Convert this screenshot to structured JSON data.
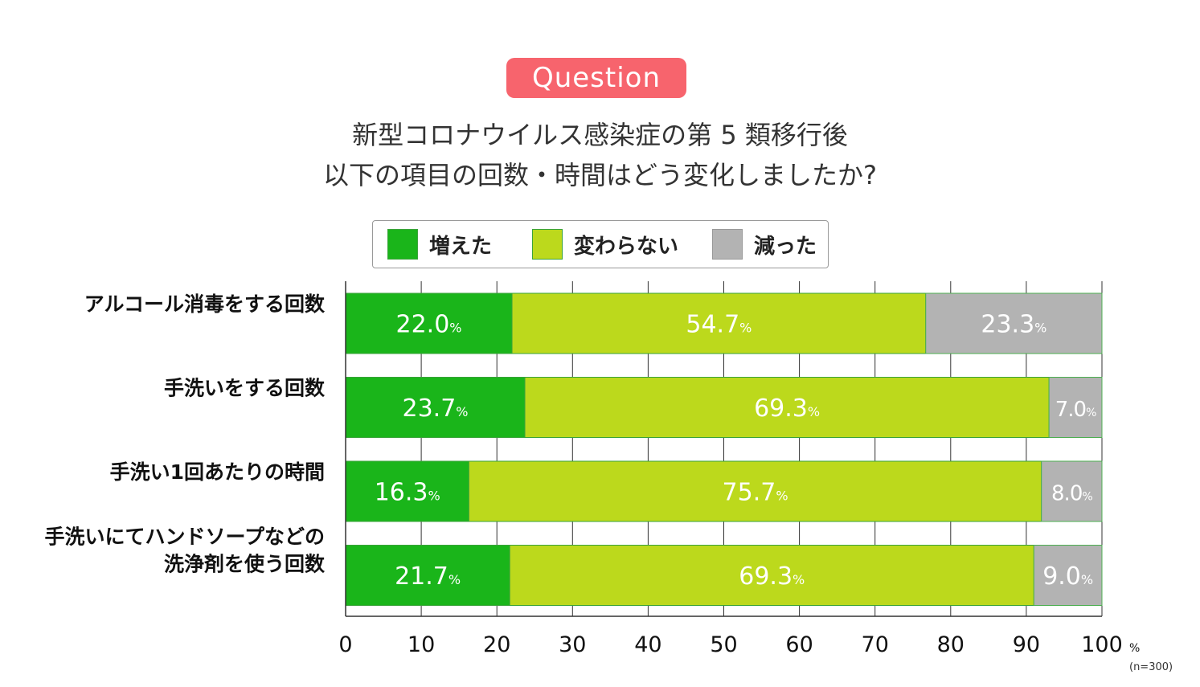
{
  "badge": "Question",
  "title_line1": "新型コロナウイルス感染症の第 5 類移行後",
  "title_line2": "以下の項目の回数・時間はどう変化しましたか?",
  "note": "(n=300)",
  "colors": {
    "increased": "#1ab51a",
    "unchanged": "#bcd91c",
    "decreased": "#b3b3b3"
  },
  "legend": [
    {
      "label": "増えた",
      "color": "#1ab51a"
    },
    {
      "label": "変わらない",
      "color": "#bcd91c"
    },
    {
      "label": "減った",
      "color": "#b3b3b3"
    }
  ],
  "chart_data": {
    "type": "bar",
    "orientation": "horizontal",
    "stacked": true,
    "categories": [
      "アルコール消毒をする回数",
      "手洗いをする回数",
      "手洗い1回あたりの時間",
      "手洗いにてハンドソープなどの\n洗浄剤を使う回数"
    ],
    "series": [
      {
        "name": "増えた",
        "values": [
          22.0,
          23.7,
          16.3,
          21.7
        ]
      },
      {
        "name": "変わらない",
        "values": [
          54.7,
          69.3,
          75.7,
          69.3
        ]
      },
      {
        "name": "減った",
        "values": [
          23.3,
          7.0,
          8.0,
          9.0
        ]
      }
    ],
    "value_labels": [
      [
        "22.0",
        "54.7",
        "23.3"
      ],
      [
        "23.7",
        "69.3",
        "7.0"
      ],
      [
        "16.3",
        "75.7",
        "8.0"
      ],
      [
        "21.7",
        "69.3",
        "9.0"
      ]
    ],
    "xlim": [
      0,
      100
    ],
    "xticks": [
      "0",
      "10",
      "20",
      "30",
      "40",
      "50",
      "60",
      "70",
      "80",
      "90",
      "100"
    ],
    "x_unit": "%",
    "value_unit": "%",
    "grid": true,
    "legend_position": "top"
  }
}
